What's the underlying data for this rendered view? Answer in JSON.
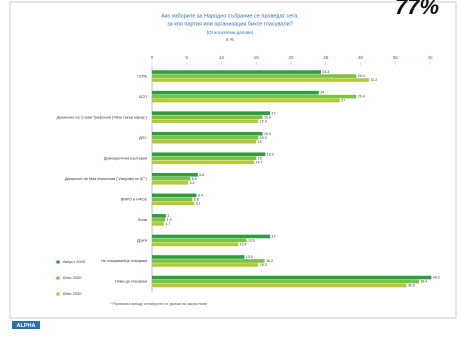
{
  "corner_text": "77%",
  "logo": "ALPHA",
  "chart_data": {
    "type": "bar",
    "orientation": "horizontal",
    "title": "Ако изборите за Народно събрание се проведат сега,",
    "title_line2": "за коя партия или организация бихте гласували?",
    "subtitle": "(Относителни дялове)",
    "unit_label": "в %",
    "footnote": "* Разликата между отговорите се дължи на закръгляне",
    "categories": [
      "ГЕРБ",
      "БСП",
      "Движение на Слави Трифонов (\"Има такъв народ\")",
      "ДПС",
      "Демократична България",
      "Движение на Мая Манолова (\"Изправи се БГ\")",
      "ВМРО и НФСБ",
      "Воля",
      "Други",
      "Не гласувам/Ще гласувам",
      "Няма да гласувам"
    ],
    "series": [
      {
        "name": "Август 2020",
        "color": "#2e9e3e",
        "values": [
          24.3,
          24.0,
          17.0,
          15.9,
          16.3,
          6.6,
          6.4,
          2.0,
          17.0,
          13.3,
          40.2
        ]
      },
      {
        "name": "Юли 2020",
        "color": "#7cc242",
        "values": [
          29.4,
          29.4,
          15.9,
          15.3,
          15.0,
          5.5,
          5.8,
          1.9,
          13.6,
          16.2,
          38.4
        ]
      },
      {
        "name": "Юни 2020",
        "color": "#b6c83a",
        "values": [
          31.2,
          27.0,
          15.3,
          15.0,
          14.7,
          5.2,
          6.1,
          1.7,
          12.4,
          15.3,
          36.6
        ]
      }
    ],
    "xlim": [
      0,
      40
    ],
    "xticks": [
      0,
      5,
      10,
      15,
      20,
      25,
      30,
      35,
      40
    ],
    "legend": "lower-left"
  }
}
